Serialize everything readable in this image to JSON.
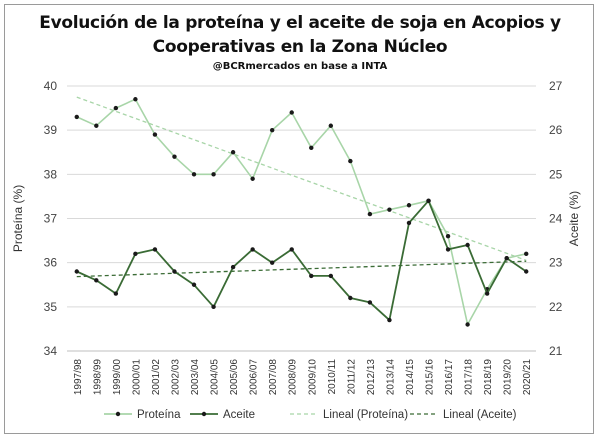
{
  "chart_data": {
    "type": "line",
    "title_line1": "Evolución de la proteína y el aceite de soja en Acopios y",
    "title_line2": "Cooperativas en la Zona Núcleo",
    "subtitle": "@BCRmercados en base a INTA",
    "ylabel_left": "Proteína (%)",
    "ylabel_right": "Aceite (%)",
    "ylim_left": [
      34,
      40
    ],
    "ylim_right": [
      21,
      27
    ],
    "yticks_left": [
      "34",
      "35",
      "36",
      "37",
      "38",
      "39",
      "40"
    ],
    "yticks_right": [
      "21",
      "22",
      "23",
      "24",
      "25",
      "26",
      "27"
    ],
    "categories": [
      "1997/98",
      "1998/99",
      "1999/00",
      "2000/01",
      "2001/02",
      "2002/03",
      "2003/04",
      "2004/05",
      "2005/06",
      "2006/07",
      "2007/08",
      "2008/09",
      "2009/10",
      "2010/11",
      "2011/12",
      "2012/13",
      "2013/14",
      "2014/15",
      "2015/16",
      "2016/17",
      "2017/18",
      "2018/19",
      "2019/20",
      "2020/21"
    ],
    "grid": true,
    "legend_position": "bottom",
    "series": [
      {
        "name": "Proteína",
        "axis": "left",
        "color": "#a8d5a8",
        "values": [
          39.3,
          39.1,
          39.5,
          39.7,
          38.9,
          38.4,
          38.0,
          38.0,
          38.5,
          37.9,
          39.0,
          39.4,
          38.6,
          39.1,
          38.3,
          37.1,
          37.2,
          37.3,
          37.4,
          36.6,
          34.6,
          35.4,
          36.1,
          36.2
        ]
      },
      {
        "name": "Aceite",
        "axis": "right",
        "color": "#3a6b35",
        "values": [
          22.8,
          22.6,
          22.3,
          23.2,
          23.3,
          22.8,
          22.5,
          22.0,
          22.9,
          23.3,
          23.0,
          23.3,
          22.7,
          22.7,
          22.2,
          22.1,
          21.7,
          23.9,
          24.4,
          23.3,
          23.4,
          22.3,
          23.1,
          22.8
        ]
      },
      {
        "name": "Lineal (Proteína)",
        "axis": "left",
        "color": "#a8d5a8",
        "style": "dashed",
        "trend_of": "Proteína"
      },
      {
        "name": "Lineal (Aceite)",
        "axis": "right",
        "color": "#3a6b35",
        "style": "dashed",
        "trend_of": "Aceite"
      }
    ]
  }
}
